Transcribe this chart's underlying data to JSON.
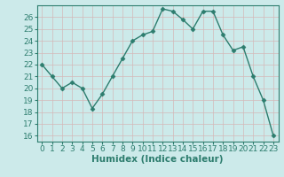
{
  "x": [
    0,
    1,
    2,
    3,
    4,
    5,
    6,
    7,
    8,
    9,
    10,
    11,
    12,
    13,
    14,
    15,
    16,
    17,
    18,
    19,
    20,
    21,
    22,
    23
  ],
  "y": [
    22,
    21,
    20,
    20.5,
    20,
    18.3,
    19.5,
    21,
    22.5,
    24,
    24.5,
    24.8,
    26.7,
    26.5,
    25.8,
    25,
    26.5,
    26.5,
    24.5,
    23.2,
    23.5,
    21,
    19,
    16
  ],
  "line_color": "#2d7d6e",
  "marker": "D",
  "marker_size": 2.5,
  "bg_color": "#cceaea",
  "grid_color_minor": "#e8c8c8",
  "grid_color_major": "#c8c8d8",
  "xlabel": "Humidex (Indice chaleur)",
  "ylim": [
    15.5,
    27
  ],
  "xlim": [
    -0.5,
    23.5
  ],
  "yticks": [
    16,
    17,
    18,
    19,
    20,
    21,
    22,
    23,
    24,
    25,
    26
  ],
  "xticks": [
    0,
    1,
    2,
    3,
    4,
    5,
    6,
    7,
    8,
    9,
    10,
    11,
    12,
    13,
    14,
    15,
    16,
    17,
    18,
    19,
    20,
    21,
    22,
    23
  ],
  "label_fontsize": 7.5,
  "tick_fontsize": 6.5
}
